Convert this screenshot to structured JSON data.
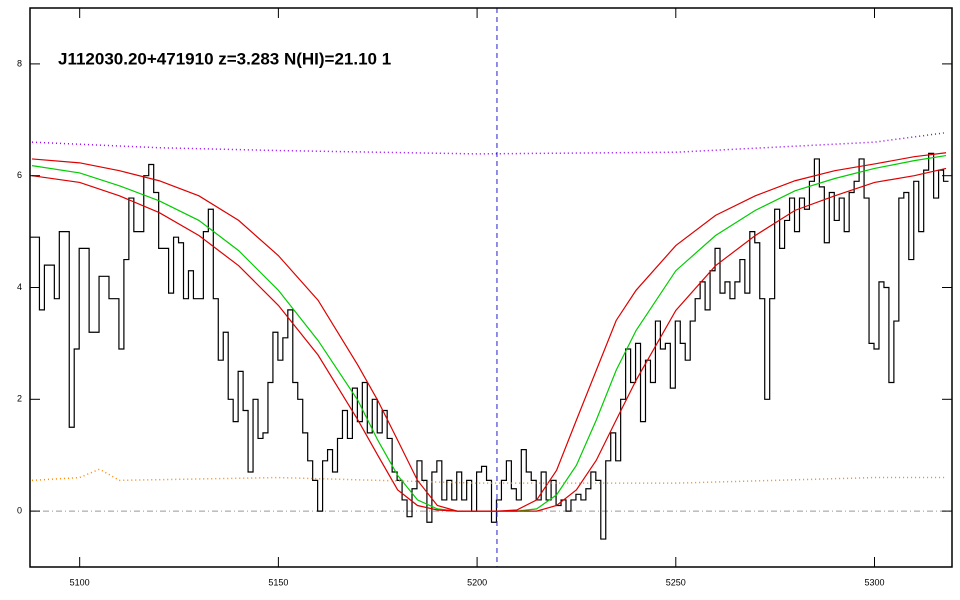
{
  "chart_data": {
    "type": "line",
    "title": "J112030.20+471910 z=3.283 N(HI)=21.10 1",
    "xlim": [
      5087.5,
      5319.5
    ],
    "ylim": [
      -1,
      9
    ],
    "xticks": [
      5100,
      5150,
      5200,
      5250,
      5300
    ],
    "yticks": [
      0,
      2,
      4,
      6,
      8
    ],
    "vline": 5205,
    "vline_color": "#2222cc",
    "hline": 0,
    "hline_color": "#999999",
    "series": [
      {
        "color": "#000000",
        "drawstyle": "steps-mid",
        "linestyle": "solid",
        "x": [
          5088,
          5089.25,
          5090.5,
          5091.75,
          5093,
          5094.25,
          5095.5,
          5096.75,
          5098,
          5099.25,
          5100.5,
          5101.75,
          5103,
          5104.25,
          5105.5,
          5106.75,
          5108,
          5109.25,
          5110.5,
          5111.75,
          5113,
          5114.25,
          5115.5,
          5116.75,
          5118,
          5119.25,
          5120.5,
          5121.75,
          5123,
          5124.25,
          5125.5,
          5126.75,
          5128,
          5129.25,
          5130.5,
          5131.75,
          5133,
          5134.25,
          5135.5,
          5136.75,
          5138,
          5139.25,
          5140.5,
          5141.75,
          5143,
          5144.25,
          5145.5,
          5146.75,
          5148,
          5149.25,
          5150.5,
          5151.75,
          5153,
          5154.25,
          5155.5,
          5156.75,
          5158,
          5159.25,
          5160.5,
          5161.75,
          5163,
          5164.25,
          5165.5,
          5166.75,
          5168,
          5169.25,
          5170.5,
          5171.75,
          5173,
          5174.25,
          5175.5,
          5176.75,
          5178,
          5179.25,
          5180.5,
          5181.75,
          5183,
          5184.25,
          5185.5,
          5186.75,
          5188,
          5189.25,
          5190.5,
          5191.75,
          5193,
          5194.25,
          5195.5,
          5196.75,
          5198,
          5199.25,
          5200.5,
          5201.75,
          5203,
          5204.25,
          5205.5,
          5206.75,
          5208,
          5209.25,
          5210.5,
          5211.75,
          5213,
          5214.25,
          5215.5,
          5216.75,
          5218,
          5219.25,
          5220.5,
          5221.75,
          5223,
          5224.25,
          5225.5,
          5226.75,
          5228,
          5229.25,
          5230.5,
          5231.75,
          5233,
          5234.25,
          5235.5,
          5236.75,
          5238,
          5239.25,
          5240.5,
          5241.75,
          5243,
          5244.25,
          5245.5,
          5246.75,
          5248,
          5249.25,
          5250.5,
          5251.75,
          5253,
          5254.25,
          5255.5,
          5256.75,
          5258,
          5259.25,
          5260.5,
          5261.75,
          5263,
          5264.25,
          5265.5,
          5266.75,
          5268,
          5269.25,
          5270.5,
          5271.75,
          5273,
          5274.25,
          5275.5,
          5276.75,
          5278,
          5279.25,
          5280.5,
          5281.75,
          5283,
          5284.25,
          5285.5,
          5286.75,
          5288,
          5289.25,
          5290.5,
          5291.75,
          5293,
          5294.25,
          5295.5,
          5296.75,
          5298,
          5299.25,
          5300.5,
          5301.75,
          5303,
          5304.25,
          5305.5,
          5306.75,
          5308,
          5309.25,
          5310.5,
          5311.75,
          5313,
          5314.25,
          5315.5,
          5316.75,
          5318
        ],
        "values": [
          4.9,
          4.9,
          3.6,
          4.4,
          4.4,
          3.8,
          5.0,
          5.0,
          1.5,
          2.9,
          4.7,
          4.7,
          3.2,
          3.2,
          4.2,
          4.2,
          3.8,
          3.8,
          2.9,
          4.5,
          5.6,
          5.0,
          5.0,
          6.0,
          6.2,
          5.7,
          4.7,
          4.7,
          3.9,
          4.9,
          4.8,
          3.8,
          4.3,
          3.8,
          3.8,
          5.0,
          5.4,
          3.8,
          2.7,
          3.2,
          2.0,
          1.6,
          2.5,
          1.8,
          0.7,
          2.0,
          1.3,
          1.4,
          2.3,
          3.2,
          2.7,
          3.1,
          3.6,
          2.3,
          2.0,
          1.4,
          0.9,
          0.55,
          0.0,
          0.9,
          1.1,
          0.7,
          1.3,
          1.8,
          1.3,
          2.2,
          1.6,
          2.3,
          1.4,
          2.0,
          1.4,
          1.8,
          1.3,
          0.7,
          0.55,
          0.2,
          -0.1,
          0.4,
          0.9,
          0.55,
          -0.2,
          0.7,
          0.9,
          0.2,
          0.55,
          0.2,
          0.7,
          0.2,
          0.55,
          0.0,
          0.7,
          0.8,
          0.55,
          -0.2,
          0.2,
          0.55,
          0.9,
          0.4,
          0.2,
          1.1,
          0.7,
          0.55,
          0.2,
          0.7,
          0.2,
          0.55,
          0.1,
          0.2,
          0.0,
          0.2,
          0.3,
          0.2,
          0.4,
          0.7,
          0.55,
          -0.5,
          0.9,
          1.4,
          0.9,
          2.0,
          2.9,
          2.3,
          3.0,
          1.6,
          2.7,
          2.3,
          3.4,
          2.9,
          3.0,
          2.2,
          3.4,
          3.0,
          2.7,
          3.4,
          3.8,
          4.1,
          3.6,
          4.3,
          4.7,
          3.9,
          4.1,
          3.8,
          4.1,
          4.5,
          3.9,
          5.0,
          4.8,
          3.8,
          2.0,
          3.8,
          5.4,
          4.7,
          5.2,
          5.6,
          5.0,
          5.6,
          5.4,
          5.9,
          6.3,
          5.8,
          4.8,
          5.7,
          5.2,
          5.6,
          5.0,
          5.7,
          5.9,
          6.3,
          5.6,
          3.0,
          2.9,
          4.1,
          4.0,
          2.3,
          3.4,
          5.6,
          5.7,
          4.5,
          5.9,
          5.0,
          6.1,
          6.4,
          5.6,
          6.1,
          5.9
        ]
      },
      {
        "color": "#00cc00",
        "drawstyle": "default",
        "linestyle": "solid",
        "x": [
          5088,
          5100,
          5110,
          5120,
          5130,
          5140,
          5150,
          5160,
          5170,
          5175,
          5180,
          5185,
          5190,
          5195,
          5200,
          5205,
          5210,
          5215,
          5220,
          5225,
          5230,
          5235,
          5240,
          5250,
          5260,
          5270,
          5280,
          5290,
          5300,
          5310,
          5318
        ],
        "values": [
          6.18,
          6.05,
          5.82,
          5.55,
          5.2,
          4.66,
          3.95,
          3.05,
          1.98,
          1.27,
          0.64,
          0.2,
          0.04,
          0,
          0,
          0,
          0,
          0.04,
          0.29,
          0.82,
          1.63,
          2.52,
          3.23,
          4.3,
          4.93,
          5.38,
          5.73,
          5.95,
          6.13,
          6.27,
          6.36
        ]
      },
      {
        "color": "#dd0000",
        "drawstyle": "default",
        "linestyle": "solid",
        "x": [
          5088,
          5100,
          5110,
          5120,
          5130,
          5140,
          5150,
          5160,
          5170,
          5175,
          5180,
          5185,
          5190,
          5195,
          5200,
          5205,
          5210,
          5215,
          5220,
          5225,
          5230,
          5235,
          5240,
          5250,
          5260,
          5270,
          5280,
          5290,
          5300,
          5310,
          5318
        ],
        "values": [
          6.3,
          6.23,
          6.09,
          5.91,
          5.64,
          5.2,
          4.57,
          3.77,
          2.61,
          1.98,
          1.27,
          0.55,
          0.1,
          0,
          0,
          0,
          0.02,
          0.2,
          0.73,
          1.63,
          2.52,
          3.41,
          3.95,
          4.75,
          5.29,
          5.64,
          5.91,
          6.09,
          6.21,
          6.34,
          6.41
        ]
      },
      {
        "color": "#dd0000",
        "drawstyle": "default",
        "linestyle": "solid",
        "x": [
          5088,
          5100,
          5110,
          5120,
          5130,
          5140,
          5150,
          5160,
          5170,
          5175,
          5180,
          5185,
          5190,
          5195,
          5200,
          5205,
          5210,
          5215,
          5220,
          5225,
          5230,
          5235,
          5240,
          5250,
          5260,
          5270,
          5280,
          5290,
          5300,
          5310,
          5318
        ],
        "values": [
          6.0,
          5.88,
          5.64,
          5.34,
          4.93,
          4.39,
          3.68,
          2.79,
          1.63,
          1.0,
          0.38,
          0.1,
          0.02,
          0,
          0,
          0,
          0,
          0,
          0.1,
          0.38,
          0.91,
          1.63,
          2.34,
          3.59,
          4.39,
          4.93,
          5.38,
          5.64,
          5.88,
          6.0,
          6.13
        ]
      },
      {
        "color": "#9900ee",
        "drawstyle": "default",
        "linestyle": "dotted",
        "x": [
          5088,
          5120,
          5150,
          5200,
          5250,
          5300,
          5318
        ],
        "values": [
          6.6,
          6.5,
          6.45,
          6.39,
          6.42,
          6.6,
          6.77
        ]
      },
      {
        "color": "#ff8800",
        "drawstyle": "default",
        "linestyle": "dotted",
        "x": [
          5088,
          5100,
          5105,
          5110,
          5150,
          5200,
          5250,
          5300,
          5318
        ],
        "values": [
          0.55,
          0.6,
          0.75,
          0.55,
          0.6,
          0.5,
          0.5,
          0.6,
          0.6
        ]
      }
    ]
  }
}
